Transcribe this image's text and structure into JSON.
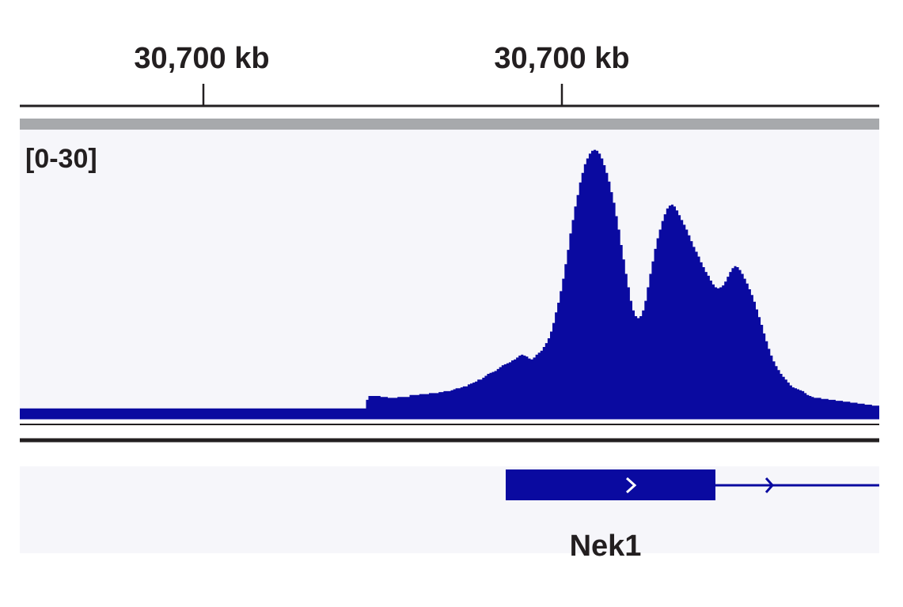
{
  "chart_data": {
    "type": "area",
    "ruler": {
      "tick_labels": [
        "30,700 kb",
        "30,700 kb"
      ]
    },
    "track": {
      "range_label": "[0-30]",
      "ylim": [
        0,
        30
      ],
      "color": "#0a0aa0",
      "values": [
        1,
        1,
        1,
        1,
        1,
        1,
        1,
        1,
        1,
        1,
        1,
        1,
        1,
        1,
        1,
        1,
        1,
        1,
        1,
        1,
        1,
        1,
        1,
        1,
        1,
        1,
        1,
        1,
        1,
        1,
        1,
        1,
        1,
        1,
        1,
        1,
        1,
        1,
        1,
        1,
        1,
        1,
        1,
        1,
        1,
        1,
        1,
        1,
        1,
        1,
        1,
        1,
        1,
        1,
        1,
        1,
        1,
        1,
        1,
        1,
        1,
        1,
        1,
        1,
        1,
        1,
        1,
        1,
        1,
        1,
        1,
        1,
        1,
        1,
        1,
        1,
        1,
        1,
        1,
        1,
        1,
        1,
        1,
        1,
        1,
        1,
        1,
        1,
        1,
        1,
        1,
        1,
        1,
        1,
        1,
        1,
        1,
        1,
        1,
        1,
        1,
        1,
        1,
        1,
        1,
        1,
        1,
        1,
        1,
        1,
        1,
        1,
        1,
        1,
        1,
        1,
        1,
        1,
        1,
        1,
        1,
        1,
        1,
        1,
        1,
        1,
        1,
        1,
        1,
        1,
        1,
        1,
        1,
        1,
        1,
        1,
        1,
        1,
        1,
        1,
        1,
        1,
        1,
        1.9,
        2.3,
        2.3,
        2.3,
        2.3,
        2.3,
        2.2,
        2.2,
        2.2,
        2.1,
        2.1,
        2.1,
        2.1,
        2.2,
        2.2,
        2.2,
        2.2,
        2.2,
        2.4,
        2.4,
        2.4,
        2.4,
        2.5,
        2.5,
        2.5,
        2.5,
        2.6,
        2.6,
        2.6,
        2.6,
        2.7,
        2.7,
        2.8,
        2.8,
        2.8,
        2.9,
        3,
        3.1,
        3.1,
        3.2,
        3.3,
        3.3,
        3.5,
        3.6,
        3.7,
        3.8,
        4,
        4,
        4.2,
        4.4,
        4.6,
        4.7,
        4.8,
        4.9,
        5.1,
        5.3,
        5.5,
        5.6,
        5.7,
        5.8,
        6,
        6.1,
        6.3,
        6.5,
        6.6,
        6.5,
        6.4,
        6.2,
        6.1,
        6.3,
        6.6,
        6.8,
        7,
        7.4,
        7.8,
        8.3,
        9,
        9.9,
        11,
        12,
        13.2,
        14.5,
        16,
        17.5,
        19.2,
        20.6,
        22,
        23.2,
        24.5,
        25.5,
        26.4,
        27,
        27.5,
        27.8,
        27.9,
        27.8,
        27.5,
        27,
        26.3,
        25.5,
        24.6,
        23.5,
        22.4,
        21,
        19.6,
        18,
        16.5,
        15,
        13.6,
        12.2,
        11.2,
        10.6,
        10.4,
        10.6,
        11.2,
        12.2,
        13.6,
        15,
        16.3,
        17.6,
        18.7,
        19.6,
        20.5,
        21.2,
        21.8,
        22.1,
        22.2,
        22,
        21.6,
        21.1,
        20.6,
        20.1,
        19.6,
        19,
        18.4,
        17.8,
        17.3,
        16.8,
        16.2,
        15.7,
        15.2,
        14.8,
        14.3,
        13.9,
        13.6,
        13.5,
        13.6,
        13.8,
        14.2,
        14.7,
        15.2,
        15.6,
        15.8,
        15.7,
        15.4,
        15,
        14.5,
        14,
        13.4,
        12.8,
        12.1,
        11.3,
        10.5,
        9.7,
        8.8,
        8,
        7.2,
        6.5,
        5.9,
        5.4,
        5,
        4.6,
        4.3,
        4,
        3.7,
        3.4,
        3.2,
        3.1,
        3,
        2.9,
        2.8,
        2.6,
        2.4,
        2.3,
        2.2,
        2.1,
        2.1,
        2.1,
        2,
        2,
        2,
        1.9,
        1.9,
        1.9,
        1.8,
        1.8,
        1.8,
        1.7,
        1.7,
        1.7,
        1.6,
        1.6,
        1.6,
        1.5,
        1.5,
        1.5,
        1.4,
        1.4,
        1.4,
        1.3,
        1.3,
        1.3
      ]
    },
    "gene": {
      "name": "Nek1",
      "strand": "+",
      "color": "#0a0aa0"
    }
  }
}
